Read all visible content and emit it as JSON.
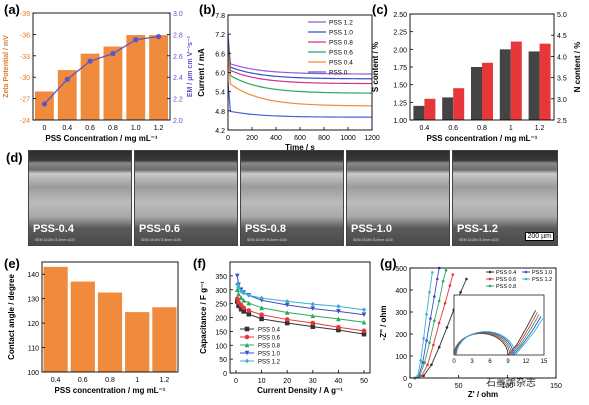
{
  "panels": {
    "a": "(a)",
    "b": "(b)",
    "c": "(c)",
    "d": "(d)",
    "e": "(e)",
    "f": "(f)",
    "g": "(g)"
  },
  "watermark": "石墨烯杂志",
  "sem": {
    "labels": [
      "PSS-0.4",
      "PSS-0.6",
      "PSS-0.8",
      "PSS-1.0",
      "PSS-1.2"
    ],
    "scale": "200 µm",
    "info": "SEM 15.0kV 8.4mm x100"
  },
  "chart_data": [
    {
      "id": "a",
      "type": "bar",
      "categories": [
        "0",
        "0.4",
        "0.6",
        "0.8",
        "1.0",
        "1.2"
      ],
      "xlabel": "PSS Concentration / mg mL⁻¹",
      "ylabel": "Zeta Potential / mV",
      "y2label": "EM / µm cm V⁻¹s⁻¹",
      "ylim": [
        -24,
        -39
      ],
      "yticks": [
        -24,
        -27,
        -30,
        -33,
        -36,
        -39
      ],
      "y2lim": [
        2.0,
        3.0
      ],
      "y2ticks": [
        2.0,
        2.2,
        2.4,
        2.6,
        2.8,
        3.0
      ],
      "series": [
        {
          "values": [
            -28,
            -31,
            -33.3,
            -34.3,
            -35.9,
            -35.9
          ],
          "color": "#f08a3c"
        },
        {
          "values": [
            2.15,
            2.38,
            2.55,
            2.62,
            2.75,
            2.78
          ],
          "color": "#5a55c8"
        }
      ]
    },
    {
      "id": "b",
      "type": "line",
      "xlabel": "Time / s",
      "ylabel": "Current / mA",
      "xlim": [
        0,
        1200
      ],
      "ylim": [
        4.2,
        7.8
      ],
      "xticks": [
        0,
        200,
        400,
        600,
        800,
        1000,
        1200
      ],
      "yticks": [
        4.2,
        4.8,
        5.4,
        6.0,
        6.6,
        7.2,
        7.8
      ],
      "series": [
        {
          "name": "PSS 1.2",
          "color": "#9b59d0",
          "start": 6.3,
          "end": 5.95
        },
        {
          "name": "PSS 1.0",
          "color": "#3a4fd0",
          "start": 6.2,
          "end": 5.8
        },
        {
          "name": "PSS 0.8",
          "color": "#d0348a",
          "start": 6.1,
          "end": 5.65
        },
        {
          "name": "PSS 0.6",
          "color": "#2aa860",
          "start": 5.95,
          "end": 5.35
        },
        {
          "name": "PSS 0.4",
          "color": "#f08a3c",
          "start": 5.7,
          "end": 4.95
        },
        {
          "name": "PSS 0",
          "color": "#4a60d8",
          "start": 4.8,
          "end": 4.6
        }
      ]
    },
    {
      "id": "c",
      "type": "bar",
      "categories": [
        "0.4",
        "0.6",
        "0.8",
        "1",
        "1.2"
      ],
      "xlabel": "PSS concentration / mg mL⁻¹",
      "ylabel": "S content / %",
      "y2label": "N content / %",
      "ylim": [
        1.0,
        2.5
      ],
      "yticks": [
        1.0,
        1.25,
        1.5,
        1.75,
        2.0,
        2.25,
        2.5
      ],
      "y2lim": [
        2.5,
        5.0
      ],
      "y2ticks": [
        2.5,
        3.0,
        3.5,
        4.0,
        4.5,
        5.0
      ],
      "series": [
        {
          "name": "S",
          "values": [
            1.2,
            1.32,
            1.75,
            2.0,
            1.97
          ],
          "color": "#444444"
        },
        {
          "name": "N",
          "values": [
            3.0,
            3.25,
            3.85,
            4.35,
            4.3
          ],
          "color": "#e8373a"
        }
      ]
    },
    {
      "id": "e",
      "type": "bar",
      "categories": [
        "0.4",
        "0.6",
        "0.8",
        "1",
        "1.2"
      ],
      "xlabel": "PSS concentration / mg mL⁻¹",
      "ylabel": "Contact angle / degree",
      "ylim": [
        100,
        145
      ],
      "yticks": [
        100,
        110,
        120,
        130,
        140
      ],
      "values": [
        143,
        137,
        132.5,
        124.5,
        126.5
      ],
      "color": "#f08a3c"
    },
    {
      "id": "f",
      "type": "line",
      "xlabel": "Current Density / A g⁻¹",
      "ylabel": "Capacitance / F g⁻¹",
      "xlim": [
        0,
        50
      ],
      "ylim": [
        0,
        400
      ],
      "xticks": [
        0,
        10,
        20,
        30,
        40,
        50
      ],
      "yticks": [
        0,
        50,
        100,
        150,
        200,
        250,
        300,
        350
      ],
      "x": [
        0.5,
        1,
        2,
        3,
        5,
        10,
        20,
        30,
        40,
        50
      ],
      "series": [
        {
          "name": "PSS 0.4",
          "color": "#333333",
          "marker": "square",
          "values": [
            258,
            242,
            230,
            222,
            212,
            195,
            180,
            167,
            155,
            140
          ]
        },
        {
          "name": "PSS 0.6",
          "color": "#e8373a",
          "marker": "circle",
          "values": [
            268,
            255,
            245,
            235,
            225,
            210,
            193,
            180,
            165,
            152
          ]
        },
        {
          "name": "PSS 0.8",
          "color": "#2aa860",
          "marker": "triangle",
          "values": [
            300,
            285,
            272,
            262,
            252,
            235,
            218,
            206,
            195,
            183
          ]
        },
        {
          "name": "PSS 1.0",
          "color": "#3a4fd0",
          "marker": "triangle-down",
          "values": [
            350,
            318,
            300,
            290,
            280,
            262,
            245,
            232,
            222,
            210
          ]
        },
        {
          "name": "PSS 1.2",
          "color": "#3ab0d0",
          "marker": "diamond",
          "values": [
            320,
            308,
            295,
            288,
            280,
            270,
            258,
            248,
            240,
            228
          ]
        }
      ]
    },
    {
      "id": "g",
      "type": "scatter",
      "xlabel": "Z' / ohm",
      "ylabel": "-Z'' / ohm",
      "xlim": [
        0,
        150
      ],
      "ylim": [
        0,
        500
      ],
      "xticks": [
        0,
        50,
        100,
        150
      ],
      "yticks": [
        0,
        100,
        200,
        300,
        400,
        500
      ],
      "series": [
        {
          "name": "PSS 0.4",
          "color": "#333333",
          "points": [
            [
              5,
              0
            ],
            [
              14,
              10
            ],
            [
              22,
              60
            ],
            [
              30,
              140
            ],
            [
              38,
              230
            ],
            [
              45,
              310
            ],
            [
              52,
              390
            ],
            [
              58,
              450
            ]
          ]
        },
        {
          "name": "PSS 0.6",
          "color": "#e8373a",
          "points": [
            [
              5,
              0
            ],
            [
              12,
              10
            ],
            [
              18,
              60
            ],
            [
              24,
              150
            ],
            [
              30,
              250
            ],
            [
              36,
              340
            ],
            [
              41,
              420
            ],
            [
              44,
              470
            ]
          ]
        },
        {
          "name": "PSS 0.8",
          "color": "#2aa860",
          "points": [
            [
              5,
              0
            ],
            [
              10,
              10
            ],
            [
              15,
              70
            ],
            [
              20,
              160
            ],
            [
              25,
              260
            ],
            [
              30,
              350
            ],
            [
              34,
              440
            ],
            [
              37,
              490
            ]
          ]
        },
        {
          "name": "PSS 1.0",
          "color": "#3a4fd0",
          "points": [
            [
              5,
              0
            ],
            [
              9,
              10
            ],
            [
              13,
              70
            ],
            [
              17,
              170
            ],
            [
              21,
              270
            ],
            [
              25,
              370
            ],
            [
              28,
              450
            ],
            [
              30,
              500
            ]
          ]
        },
        {
          "name": "PSS 1.2",
          "color": "#3ab0d0",
          "points": [
            [
              5,
              0
            ],
            [
              8,
              10
            ],
            [
              11,
              80
            ],
            [
              14,
              180
            ],
            [
              17,
              290
            ],
            [
              20,
              390
            ],
            [
              23,
              480
            ]
          ]
        }
      ],
      "inset": {
        "xlim": [
          0,
          15
        ],
        "ylim": [
          0,
          9
        ],
        "xticks": [
          0,
          3,
          6,
          9,
          12,
          15
        ]
      }
    }
  ]
}
